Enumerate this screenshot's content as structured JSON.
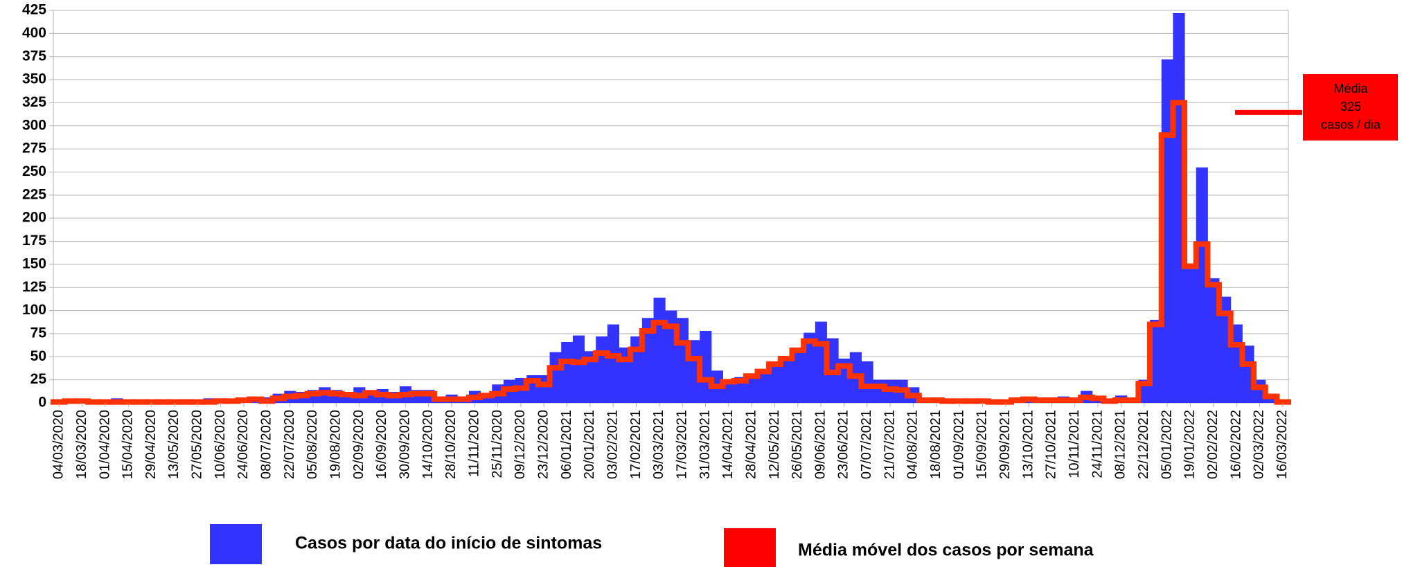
{
  "chart_data": {
    "type": "bar",
    "categories": [
      "04/03/2020",
      null,
      "18/03/2020",
      null,
      "01/04/2020",
      null,
      "15/04/2020",
      null,
      "29/04/2020",
      null,
      "13/05/2020",
      null,
      "27/05/2020",
      null,
      "10/06/2020",
      null,
      "24/06/2020",
      null,
      "08/07/2020",
      null,
      "22/07/2020",
      null,
      "05/08/2020",
      null,
      "19/08/2020",
      null,
      "02/09/2020",
      null,
      "16/09/2020",
      null,
      "30/09/2020",
      null,
      "14/10/2020",
      null,
      "28/10/2020",
      null,
      "11/11/2020",
      null,
      "25/11/2020",
      null,
      "09/12/2020",
      null,
      "23/12/2020",
      null,
      "06/01/2021",
      null,
      "20/01/2021",
      null,
      "03/02/2021",
      null,
      "17/02/2021",
      null,
      "03/03/2021",
      null,
      "17/03/2021",
      null,
      "31/03/2021",
      null,
      "14/04/2021",
      null,
      "28/04/2021",
      null,
      "12/05/2021",
      null,
      "26/05/2021",
      null,
      "09/06/2021",
      null,
      "23/06/2021",
      null,
      "07/07/2021",
      null,
      "21/07/2021",
      null,
      "04/08/2021",
      null,
      "18/08/2021",
      null,
      "01/09/2021",
      null,
      "15/09/2021",
      null,
      "29/09/2021",
      null,
      "13/10/2021",
      null,
      "27/10/2021",
      null,
      "10/11/2021",
      null,
      "24/11/2021",
      null,
      "08/12/2021",
      null,
      "22/12/2021",
      null,
      "05/01/2022",
      null,
      "19/01/2022",
      null,
      "02/02/2022",
      null,
      "16/02/2022",
      null,
      "02/03/2022",
      null,
      "16/03/2022"
    ],
    "series": [
      {
        "name": "Casos por data do início de sintomas",
        "color": "#3333ff",
        "kind": "bar",
        "values": [
          1,
          3,
          3,
          2,
          2,
          5,
          2,
          2,
          2,
          3,
          3,
          4,
          3,
          5,
          5,
          4,
          5,
          6,
          6,
          10,
          13,
          12,
          14,
          17,
          14,
          12,
          17,
          14,
          15,
          12,
          18,
          14,
          14,
          6,
          9,
          7,
          13,
          10,
          20,
          25,
          27,
          30,
          30,
          55,
          66,
          73,
          56,
          72,
          85,
          60,
          72,
          92,
          114,
          100,
          92,
          68,
          78,
          35,
          24,
          28,
          28,
          36,
          42,
          50,
          60,
          76,
          88,
          70,
          48,
          55,
          45,
          25,
          25,
          25,
          17,
          6,
          4,
          3,
          3,
          3,
          4,
          2,
          3,
          6,
          5,
          4,
          4,
          7,
          4,
          13,
          6,
          4,
          8,
          5,
          25,
          90,
          372,
          422,
          145,
          255,
          135,
          115,
          85,
          62,
          25,
          10,
          2
        ]
      },
      {
        "name": "Média móvel dos casos por semana",
        "color": "#ff3300",
        "legend_color": "#ff0000",
        "kind": "step",
        "values": [
          1,
          2,
          2,
          1,
          1,
          1,
          1,
          1,
          1,
          1,
          1,
          1,
          1,
          1,
          2,
          2,
          3,
          4,
          2,
          5,
          7,
          8,
          10,
          11,
          10,
          9,
          8,
          11,
          9,
          8,
          9,
          10,
          10,
          4,
          4,
          4,
          6,
          8,
          10,
          15,
          16,
          24,
          20,
          38,
          45,
          44,
          47,
          54,
          51,
          47,
          58,
          78,
          87,
          83,
          65,
          48,
          25,
          18,
          23,
          24,
          29,
          34,
          42,
          48,
          57,
          67,
          64,
          33,
          40,
          29,
          18,
          18,
          15,
          14,
          8,
          3,
          3,
          2,
          2,
          2,
          2,
          1,
          1,
          3,
          4,
          3,
          3,
          3,
          3,
          6,
          5,
          2,
          3,
          3,
          21,
          85,
          290,
          325,
          148,
          172,
          128,
          97,
          63,
          42,
          17,
          7,
          1
        ]
      }
    ],
    "ylim": [
      0,
      425
    ],
    "yticks": [
      0,
      25,
      50,
      75,
      100,
      125,
      150,
      175,
      200,
      225,
      250,
      275,
      300,
      325,
      350,
      375,
      400,
      425
    ],
    "grid": true,
    "annotation": {
      "lines": [
        "Média",
        "325",
        "casos / dia"
      ],
      "color": "#ff0000"
    }
  }
}
